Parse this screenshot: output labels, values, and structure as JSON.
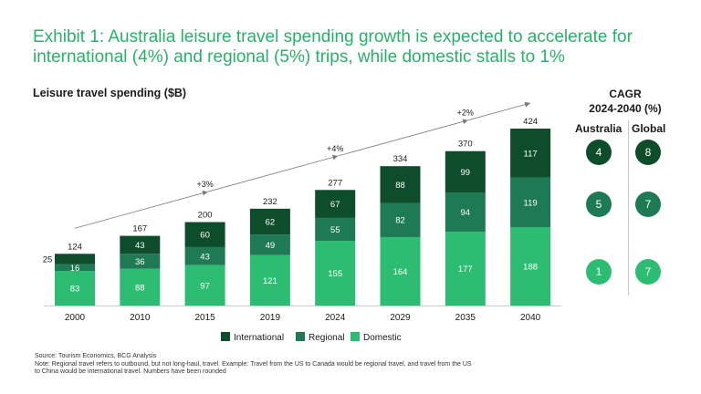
{
  "title": "Exhibit 1: Australia leisure travel spending growth is expected to accelerate for international (4%) and regional (5%) trips, while domestic stalls to 1%",
  "colors": {
    "title": "#2ab06a",
    "international": "#0d4d2b",
    "regional": "#1e7a55",
    "domestic": "#2dbd72"
  },
  "chart_data": {
    "type": "bar",
    "stacked": true,
    "title": "Leisure travel spending ($B)",
    "categories": [
      "2000",
      "2010",
      "2015",
      "2019",
      "2024",
      "2029",
      "2035",
      "2040"
    ],
    "series": [
      {
        "name": "Domestic",
        "values": [
          83,
          88,
          97,
          121,
          155,
          164,
          177,
          188
        ]
      },
      {
        "name": "Regional",
        "values": [
          16,
          36,
          43,
          49,
          55,
          82,
          94,
          119
        ]
      },
      {
        "name": "International",
        "values": [
          25,
          43,
          60,
          62,
          67,
          88,
          99,
          117
        ]
      }
    ],
    "totals": [
      "124",
      "167",
      "200",
      "232",
      "277",
      "334",
      "370",
      "424"
    ],
    "growth_annotations": [
      "+3%",
      "+4%",
      "+2%"
    ],
    "ylim": [
      0,
      424
    ]
  },
  "legend": [
    {
      "label": "International",
      "color": "#0d4d2b"
    },
    {
      "label": "Regional",
      "color": "#1e7a55"
    },
    {
      "label": "Domestic",
      "color": "#2dbd72"
    }
  ],
  "cagr": {
    "title_line1": "CAGR",
    "title_line2": "2024-2040 (%)",
    "col_australia": "Australia",
    "col_global": "Global",
    "rows": [
      {
        "australia": "4",
        "global": "8",
        "color": "#0d4d2b"
      },
      {
        "australia": "5",
        "global": "7",
        "color": "#1e7a55"
      },
      {
        "australia": "1",
        "global": "7",
        "color": "#2dbd72"
      }
    ]
  },
  "source_line": "Source: Tourism Economics, BCG Analysis",
  "note_line1": "Note: Regional travel refers to outbound, but not long-haul, travel. Example: Travel from the US to Canada would be regional travel, and travel from the US",
  "note_line2": "to China would be international travel. Numbers have been rounded"
}
